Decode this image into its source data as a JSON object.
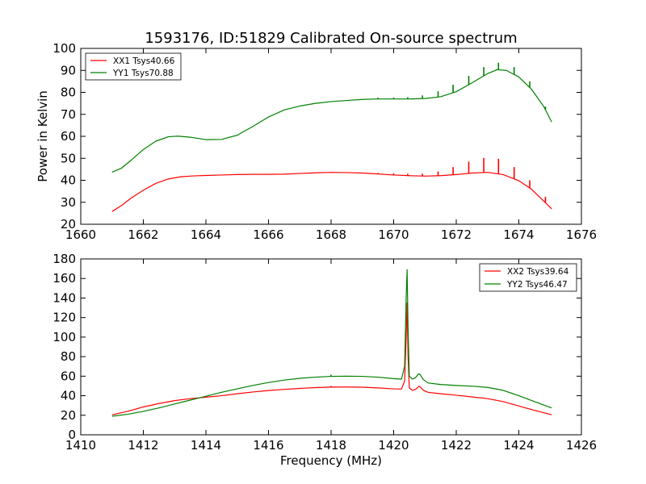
{
  "chart_data": [
    {
      "type": "line",
      "title": "1593176, ID:51829 Calibrated On-source spectrum",
      "xlabel": "",
      "ylabel": "Power in Kelvin",
      "xlim": [
        1660,
        1676
      ],
      "ylim": [
        20,
        100
      ],
      "xticks": [
        "1660",
        "1662",
        "1664",
        "1666",
        "1668",
        "1670",
        "1672",
        "1674",
        "1676"
      ],
      "yticks": [
        "20",
        "30",
        "40",
        "50",
        "60",
        "70",
        "80",
        "90",
        "100"
      ],
      "legend": "top-left",
      "series": [
        {
          "name": "XX1 Tsys40.66",
          "color": "#ff0000",
          "x": [
            1661.0,
            1661.3,
            1661.6,
            1662.0,
            1662.4,
            1662.8,
            1663.2,
            1663.6,
            1664.0,
            1664.5,
            1665.0,
            1665.5,
            1666.0,
            1666.5,
            1667.0,
            1667.5,
            1668.0,
            1668.5,
            1669.0,
            1669.5,
            1670.0,
            1670.5,
            1671.0,
            1671.5,
            1672.0,
            1672.5,
            1673.0,
            1673.5,
            1674.0,
            1674.4,
            1674.8,
            1675.05
          ],
          "y": [
            25.8,
            28.5,
            31.8,
            35.5,
            38.6,
            40.6,
            41.6,
            42.0,
            42.2,
            42.4,
            42.6,
            42.7,
            42.7,
            42.8,
            43.1,
            43.4,
            43.6,
            43.5,
            43.3,
            42.9,
            42.4,
            42.1,
            41.9,
            42.1,
            42.6,
            43.3,
            43.6,
            42.6,
            39.8,
            36.0,
            30.5,
            27.0
          ],
          "spikes": [
            {
              "x": 1669.5,
              "y": 43.3
            },
            {
              "x": 1670.0,
              "y": 43.2
            },
            {
              "x": 1670.45,
              "y": 43.0
            },
            {
              "x": 1670.92,
              "y": 43.0
            },
            {
              "x": 1671.42,
              "y": 44.0
            },
            {
              "x": 1671.9,
              "y": 46.0
            },
            {
              "x": 1672.4,
              "y": 48.5
            },
            {
              "x": 1672.88,
              "y": 50.2
            },
            {
              "x": 1673.35,
              "y": 49.8
            },
            {
              "x": 1673.85,
              "y": 46.0
            },
            {
              "x": 1674.35,
              "y": 40.0
            },
            {
              "x": 1674.85,
              "y": 32.5
            }
          ]
        },
        {
          "name": "YY1 Tsys70.88",
          "color": "#008000",
          "x": [
            1661.0,
            1661.3,
            1661.6,
            1662.0,
            1662.4,
            1662.8,
            1663.1,
            1663.5,
            1664.0,
            1664.5,
            1665.0,
            1665.5,
            1666.0,
            1666.5,
            1667.0,
            1667.5,
            1668.0,
            1668.5,
            1669.0,
            1669.5,
            1670.0,
            1670.5,
            1671.0,
            1671.5,
            1672.0,
            1672.5,
            1673.0,
            1673.3,
            1673.6,
            1674.0,
            1674.4,
            1674.8,
            1675.05
          ],
          "y": [
            43.7,
            45.5,
            49.0,
            54.0,
            57.8,
            59.8,
            60.1,
            59.6,
            58.5,
            58.6,
            60.5,
            64.5,
            68.8,
            72.0,
            73.8,
            75.0,
            75.8,
            76.3,
            76.8,
            77.0,
            77.0,
            77.0,
            77.2,
            78.0,
            80.3,
            84.3,
            88.5,
            90.3,
            90.0,
            87.0,
            81.5,
            73.5,
            66.5
          ],
          "spikes": [
            {
              "x": 1669.5,
              "y": 77.6
            },
            {
              "x": 1670.0,
              "y": 77.6
            },
            {
              "x": 1670.45,
              "y": 77.8
            },
            {
              "x": 1670.92,
              "y": 78.6
            },
            {
              "x": 1671.42,
              "y": 80.5
            },
            {
              "x": 1671.9,
              "y": 83.5
            },
            {
              "x": 1672.4,
              "y": 87.5
            },
            {
              "x": 1672.88,
              "y": 91.5
            },
            {
              "x": 1673.35,
              "y": 93.5
            },
            {
              "x": 1673.85,
              "y": 91.5
            },
            {
              "x": 1674.35,
              "y": 85.0
            },
            {
              "x": 1674.85,
              "y": 73.5
            }
          ]
        }
      ]
    },
    {
      "type": "line",
      "title": "",
      "xlabel": "Frequency (MHz)",
      "ylabel": "",
      "xlim": [
        1410,
        1426
      ],
      "ylim": [
        0,
        180
      ],
      "xticks": [
        "1410",
        "1412",
        "1414",
        "1416",
        "1418",
        "1420",
        "1422",
        "1424",
        "1426"
      ],
      "yticks": [
        "0",
        "20",
        "40",
        "60",
        "80",
        "100",
        "120",
        "140",
        "160",
        "180"
      ],
      "legend": "top-right",
      "series": [
        {
          "name": "XX2 Tsys39.64",
          "color": "#ff0000",
          "x": [
            1411.0,
            1411.5,
            1412.0,
            1412.5,
            1413.0,
            1413.5,
            1414.0,
            1414.5,
            1415.0,
            1415.5,
            1416.0,
            1416.5,
            1417.0,
            1417.5,
            1418.0,
            1418.5,
            1419.0,
            1419.5,
            1420.0,
            1420.25,
            1420.35,
            1420.4,
            1420.43,
            1420.46,
            1420.5,
            1420.6,
            1420.7,
            1420.8,
            1420.85,
            1420.95,
            1421.1,
            1421.5,
            1422.0,
            1422.5,
            1423.0,
            1423.5,
            1424.0,
            1424.5,
            1425.05
          ],
          "y": [
            20.5,
            24.0,
            28.5,
            32.0,
            35.0,
            37.0,
            38.5,
            40.0,
            42.0,
            43.8,
            45.3,
            46.5,
            47.5,
            48.3,
            48.8,
            48.9,
            48.7,
            48.0,
            47.0,
            46.8,
            55.0,
            100.0,
            135.0,
            80.0,
            48.0,
            45.5,
            46.5,
            49.5,
            49.0,
            45.5,
            43.5,
            42.0,
            40.5,
            38.8,
            37.0,
            34.0,
            29.5,
            25.0,
            20.5
          ],
          "spikes": [
            {
              "x": 1418.0,
              "y": 50.0
            }
          ]
        },
        {
          "name": "YY2 Tsys46.47",
          "color": "#008000",
          "x": [
            1411.0,
            1411.5,
            1412.0,
            1412.5,
            1413.0,
            1413.5,
            1414.0,
            1414.5,
            1415.0,
            1415.5,
            1416.0,
            1416.5,
            1417.0,
            1417.5,
            1418.0,
            1418.5,
            1419.0,
            1419.5,
            1420.0,
            1420.25,
            1420.35,
            1420.4,
            1420.43,
            1420.46,
            1420.5,
            1420.6,
            1420.7,
            1420.8,
            1420.85,
            1420.95,
            1421.1,
            1421.5,
            1422.0,
            1422.5,
            1423.0,
            1423.5,
            1424.0,
            1424.5,
            1425.05
          ],
          "y": [
            19.0,
            21.0,
            24.0,
            27.5,
            31.5,
            35.5,
            39.5,
            43.5,
            47.0,
            50.5,
            53.5,
            56.0,
            57.8,
            59.0,
            59.8,
            60.0,
            59.8,
            59.0,
            57.5,
            57.0,
            70.0,
            140.0,
            169.0,
            110.0,
            60.0,
            57.0,
            58.5,
            62.5,
            61.5,
            56.5,
            53.0,
            51.5,
            50.5,
            49.8,
            48.5,
            45.5,
            40.0,
            34.0,
            27.5
          ],
          "spikes": [
            {
              "x": 1418.0,
              "y": 61.5
            }
          ]
        }
      ]
    }
  ]
}
